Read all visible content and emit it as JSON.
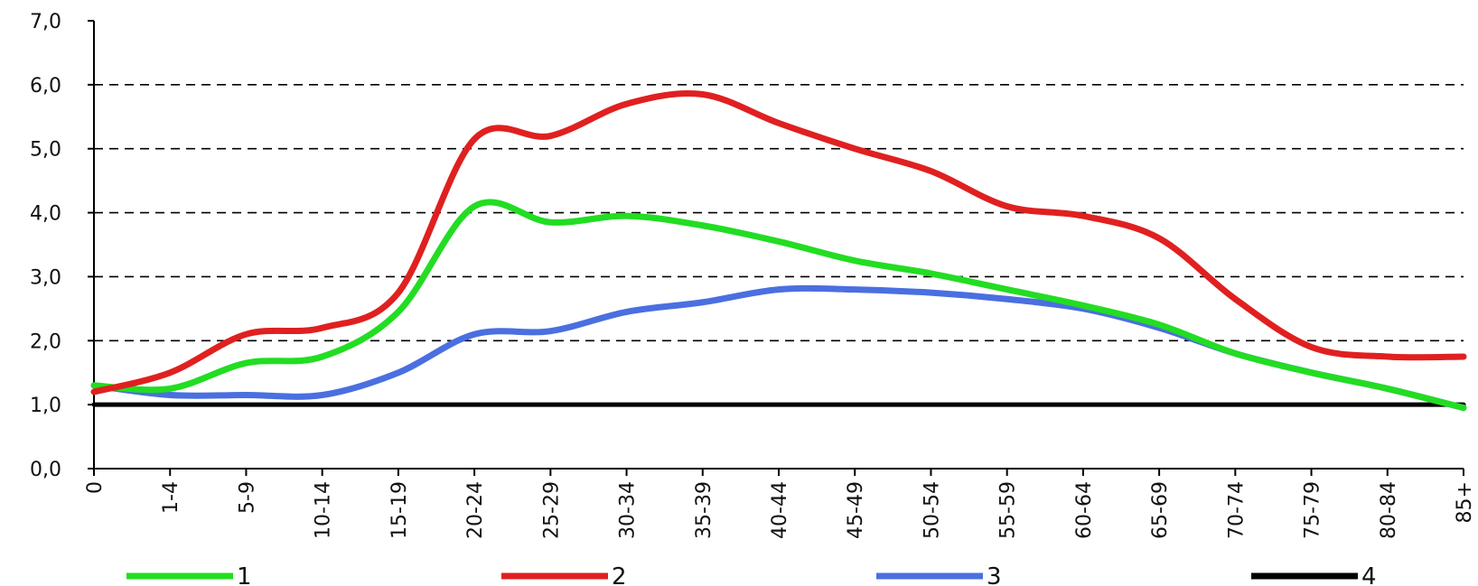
{
  "chart_data": {
    "type": "line",
    "title": "",
    "xlabel": "",
    "ylabel": "",
    "categories": [
      "0",
      "1-4",
      "5-9",
      "10-14",
      "15-19",
      "20-24",
      "25-29",
      "30-34",
      "35-39",
      "40-44",
      "45-49",
      "50-54",
      "55-59",
      "60-64",
      "65-69",
      "70-74",
      "75-79",
      "80-84",
      "85+"
    ],
    "ylim": [
      0,
      7
    ],
    "yticks": [
      "0,0",
      "1,0",
      "2,0",
      "3,0",
      "4,0",
      "5,0",
      "6,0",
      "7,0"
    ],
    "grid": "dashed horizontal",
    "legend_position": "bottom",
    "series": [
      {
        "name": "1",
        "color": "#22dd22",
        "values": [
          1.3,
          1.25,
          1.65,
          1.75,
          2.45,
          4.1,
          3.85,
          3.95,
          3.8,
          3.55,
          3.25,
          3.05,
          2.8,
          2.55,
          2.25,
          1.8,
          1.5,
          1.25,
          0.95
        ]
      },
      {
        "name": "2",
        "color": "#e02020",
        "values": [
          1.2,
          1.5,
          2.1,
          2.2,
          2.75,
          5.15,
          5.2,
          5.7,
          5.85,
          5.4,
          5.0,
          4.65,
          4.1,
          3.95,
          3.6,
          2.65,
          1.9,
          1.75,
          1.75
        ]
      },
      {
        "name": "3",
        "color": "#4a6fe0",
        "values": [
          1.3,
          1.15,
          1.15,
          1.15,
          1.5,
          2.1,
          2.15,
          2.45,
          2.6,
          2.8,
          2.8,
          2.75,
          2.65,
          2.5,
          2.2,
          1.8,
          1.5,
          1.25,
          0.95
        ]
      },
      {
        "name": "4",
        "color": "#000000",
        "values": [
          1.0,
          1.0,
          1.0,
          1.0,
          1.0,
          1.0,
          1.0,
          1.0,
          1.0,
          1.0,
          1.0,
          1.0,
          1.0,
          1.0,
          1.0,
          1.0,
          1.0,
          1.0,
          1.0
        ]
      }
    ]
  }
}
